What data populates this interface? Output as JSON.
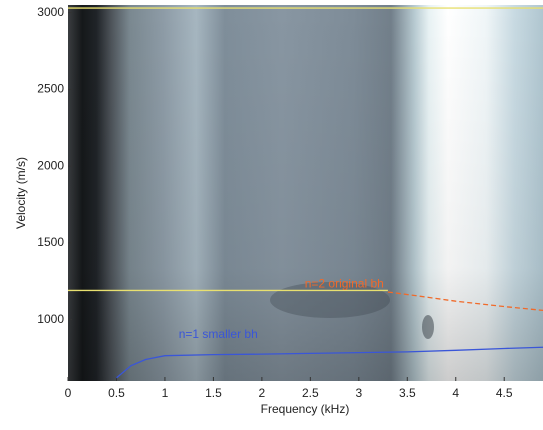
{
  "chart_data": {
    "type": "line",
    "xlabel": "Frequency (kHz)",
    "ylabel": "Velocity (m/s)",
    "xlim": [
      0,
      4.9
    ],
    "ylim": [
      600,
      3050
    ],
    "xticks": [
      0,
      0.5,
      1,
      1.5,
      2,
      2.5,
      3,
      3.5,
      4,
      4.5
    ],
    "yticks": [
      1000,
      1500,
      2000,
      2500,
      3000
    ],
    "series": [
      {
        "color": "#e8e070",
        "style": "solid",
        "x": [
          0,
          4.9
        ],
        "values": [
          3030,
          3030
        ]
      },
      {
        "color": "#e8e070",
        "style": "solid",
        "x": [
          0,
          3.3
        ],
        "values": [
          1190,
          1190
        ]
      },
      {
        "name": "n=2 original bh",
        "color": "#f06a2a",
        "style": "dashed",
        "x": [
          3.3,
          3.6,
          4.0,
          4.5,
          4.9
        ],
        "values": [
          1180,
          1155,
          1120,
          1085,
          1060
        ]
      },
      {
        "name": "n=1 smaller bh",
        "color": "#3a56d8",
        "style": "solid",
        "x": [
          0.5,
          0.65,
          0.8,
          1.0,
          1.5,
          2.0,
          2.5,
          3.0,
          3.5,
          4.0,
          4.5,
          4.9
        ],
        "values": [
          620,
          700,
          740,
          765,
          772,
          775,
          780,
          785,
          790,
          800,
          812,
          820
        ]
      }
    ]
  }
}
